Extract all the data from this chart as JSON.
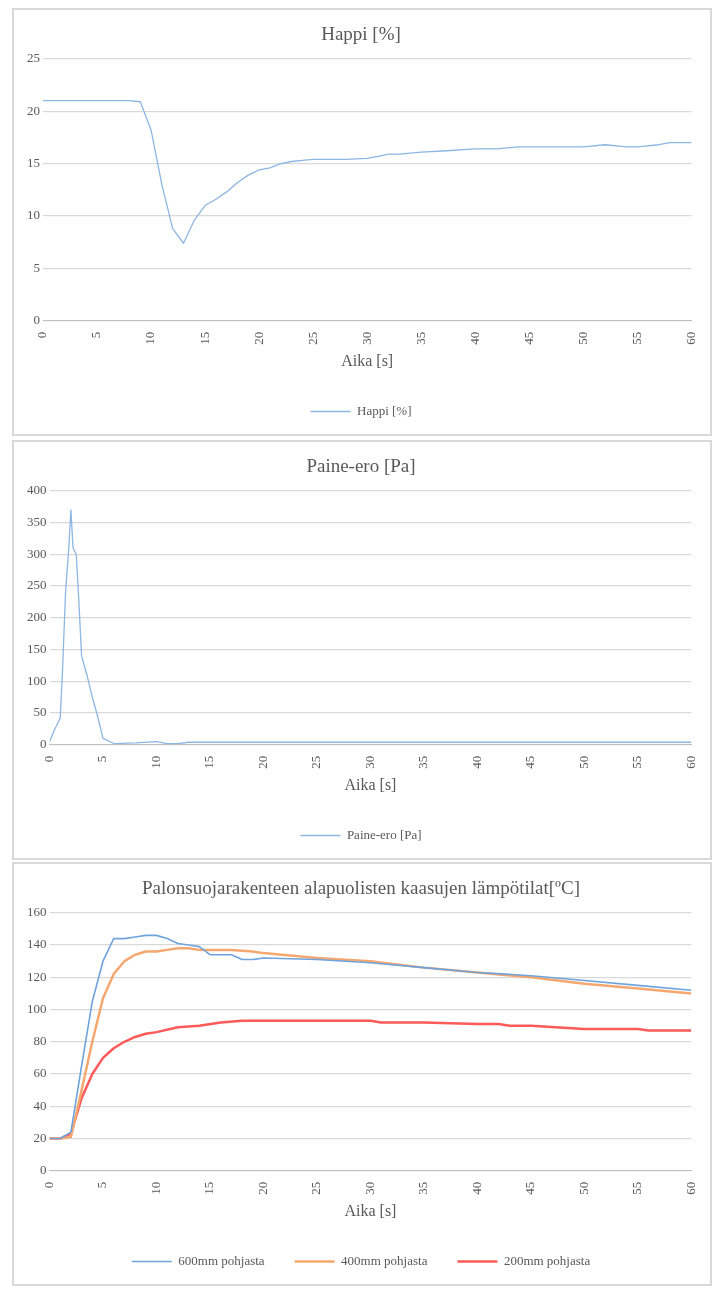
{
  "chart_data": [
    {
      "type": "line",
      "title": "Happi [%]",
      "xlabel": "Aika [s]",
      "xlim": [
        0,
        60
      ],
      "xticks": [
        0,
        5,
        10,
        15,
        20,
        25,
        30,
        35,
        40,
        45,
        50,
        55,
        60
      ],
      "ylim": [
        0,
        25
      ],
      "yticks": [
        0,
        5,
        10,
        15,
        20,
        25
      ],
      "grid": "y",
      "legend": "bottom",
      "marker": "none",
      "line_style": "solid",
      "series": [
        {
          "name": "Happi [%]",
          "color": "#8db6e2",
          "x": [
            0,
            1,
            2,
            3,
            4,
            5,
            6,
            7,
            8,
            9,
            10,
            11,
            12,
            13,
            14,
            15,
            16,
            17,
            18,
            19,
            20,
            21,
            22,
            23,
            24,
            25,
            28,
            30,
            31,
            32,
            33,
            35,
            37,
            40,
            42,
            44,
            50,
            52,
            54,
            55,
            57,
            58,
            60
          ],
          "values": [
            21,
            21,
            21,
            21,
            21,
            21,
            21,
            21,
            21,
            20.9,
            18.2,
            13,
            8.8,
            7.4,
            9.6,
            11,
            11.6,
            12.3,
            13.2,
            13.9,
            14.4,
            14.6,
            15,
            15.2,
            15.3,
            15.4,
            15.4,
            15.5,
            15.7,
            15.9,
            15.9,
            16.1,
            16.2,
            16.4,
            16.4,
            16.6,
            16.6,
            16.8,
            16.6,
            16.6,
            16.8,
            17,
            17
          ]
        }
      ]
    },
    {
      "type": "line",
      "title": "Paine-ero [Pa]",
      "xlabel": "Aika [s]",
      "xlim": [
        0,
        60
      ],
      "xticks": [
        0,
        5,
        10,
        15,
        20,
        25,
        30,
        35,
        40,
        45,
        50,
        55,
        60
      ],
      "ylim": [
        0,
        400
      ],
      "yticks": [
        0,
        50,
        100,
        150,
        200,
        250,
        300,
        350,
        400
      ],
      "grid": "y",
      "legend": "bottom",
      "marker": "none",
      "line_style": "solid",
      "series": [
        {
          "name": "Paine-ero [Pa]",
          "color": "#8db6e2",
          "x": [
            0,
            0.5,
            1,
            1.2,
            1.5,
            1.8,
            2,
            2.2,
            2.5,
            2.7,
            3,
            3.5,
            4,
            4.5,
            5,
            6,
            8,
            10,
            11,
            12,
            13,
            20,
            30,
            40,
            50,
            60
          ],
          "values": [
            5,
            25,
            42,
            110,
            240,
            310,
            370,
            310,
            300,
            240,
            140,
            110,
            75,
            45,
            10,
            2,
            3,
            5,
            2,
            2,
            4,
            4,
            4,
            4,
            4,
            4
          ]
        }
      ]
    },
    {
      "type": "line",
      "title": "Palonsuojarakenteen alapuolisten kaasujen lämpötilat[ºC]",
      "xlabel": "Aika [s]",
      "xlim": [
        0,
        60
      ],
      "xticks": [
        0,
        5,
        10,
        15,
        20,
        25,
        30,
        35,
        40,
        45,
        50,
        55,
        60
      ],
      "ylim": [
        0,
        160
      ],
      "yticks": [
        0,
        20,
        40,
        60,
        80,
        100,
        120,
        140,
        160
      ],
      "grid": "y",
      "legend": "bottom",
      "marker": "none",
      "line_style": "solid",
      "series": [
        {
          "name": "600mm pohjasta",
          "color": "#6fa3dc",
          "x": [
            0,
            1,
            2,
            3,
            4,
            5,
            6,
            7,
            8,
            9,
            10,
            11,
            12,
            13,
            14,
            15,
            16,
            17,
            18,
            19,
            20,
            25,
            30,
            35,
            40,
            45,
            50,
            55,
            60
          ],
          "values": [
            20,
            20,
            24,
            65,
            105,
            130,
            144,
            144,
            145,
            146,
            146,
            144,
            141,
            140,
            139,
            134,
            134,
            134,
            131,
            131,
            132,
            131,
            129,
            126,
            123,
            121,
            118,
            115,
            112
          ]
        },
        {
          "name": "400mm pohjasta",
          "color": "#f4a870",
          "x": [
            0,
            1,
            2,
            3,
            4,
            5,
            6,
            7,
            8,
            9,
            10,
            11,
            12,
            13,
            14,
            15,
            17,
            19,
            20,
            25,
            30,
            35,
            40,
            45,
            50,
            55,
            60
          ],
          "values": [
            20,
            20,
            21,
            50,
            80,
            107,
            122,
            130,
            134,
            136,
            136,
            137,
            138,
            138,
            137,
            137,
            137,
            136,
            135,
            132,
            130,
            126,
            123,
            120,
            116,
            113,
            110
          ]
        },
        {
          "name": "200mm pohjasta",
          "color": "#ff5a5a",
          "x": [
            0,
            1,
            2,
            3,
            4,
            5,
            6,
            7,
            8,
            9,
            10,
            12,
            14,
            16,
            18,
            20,
            25,
            30,
            31,
            35,
            40,
            42,
            43,
            45,
            50,
            55,
            56,
            60
          ],
          "values": [
            20,
            20,
            23,
            45,
            60,
            70,
            76,
            80,
            83,
            85,
            86,
            89,
            90,
            92,
            93,
            93,
            93,
            93,
            92,
            92,
            91,
            91,
            90,
            90,
            88,
            88,
            87,
            87
          ]
        }
      ]
    }
  ]
}
